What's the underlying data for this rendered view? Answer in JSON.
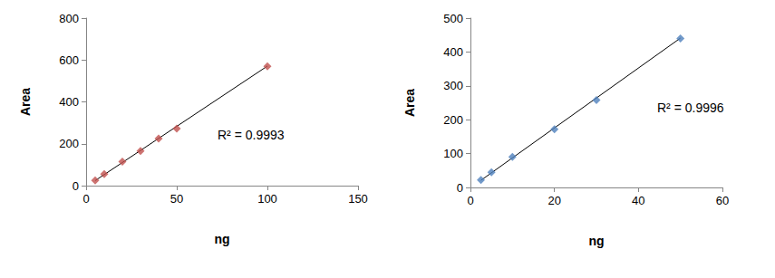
{
  "chart_data": [
    {
      "type": "scatter",
      "x_label": "ng",
      "y_label": "Area",
      "x": [
        5,
        10,
        20,
        30,
        40,
        50,
        100
      ],
      "values": [
        25,
        55,
        115,
        165,
        225,
        272,
        570
      ],
      "color": "#c0504d",
      "marker": "diamond",
      "xlim": [
        0,
        150
      ],
      "xticks": [
        0,
        50,
        100,
        150
      ],
      "ylim": [
        0,
        800
      ],
      "yticks": [
        0,
        200,
        400,
        600,
        800
      ],
      "grid": false,
      "trendline": {
        "x": [
          5,
          100
        ],
        "values": [
          24,
          571
        ]
      },
      "annotation": "R² = 0.9993"
    },
    {
      "type": "scatter",
      "x_label": "ng",
      "y_label": "Area",
      "x": [
        2.5,
        5,
        10,
        20,
        30,
        50
      ],
      "values": [
        22,
        45,
        90,
        172,
        258,
        440
      ],
      "color": "#4f81bd",
      "marker": "diamond",
      "xlim": [
        0,
        60
      ],
      "xticks": [
        0,
        20,
        40,
        60
      ],
      "ylim": [
        0,
        500
      ],
      "yticks": [
        0,
        100,
        200,
        300,
        400,
        500
      ],
      "grid": false,
      "trendline": {
        "x": [
          2.5,
          50
        ],
        "values": [
          21,
          441
        ]
      },
      "annotation": "R² = 0.9996"
    }
  ]
}
